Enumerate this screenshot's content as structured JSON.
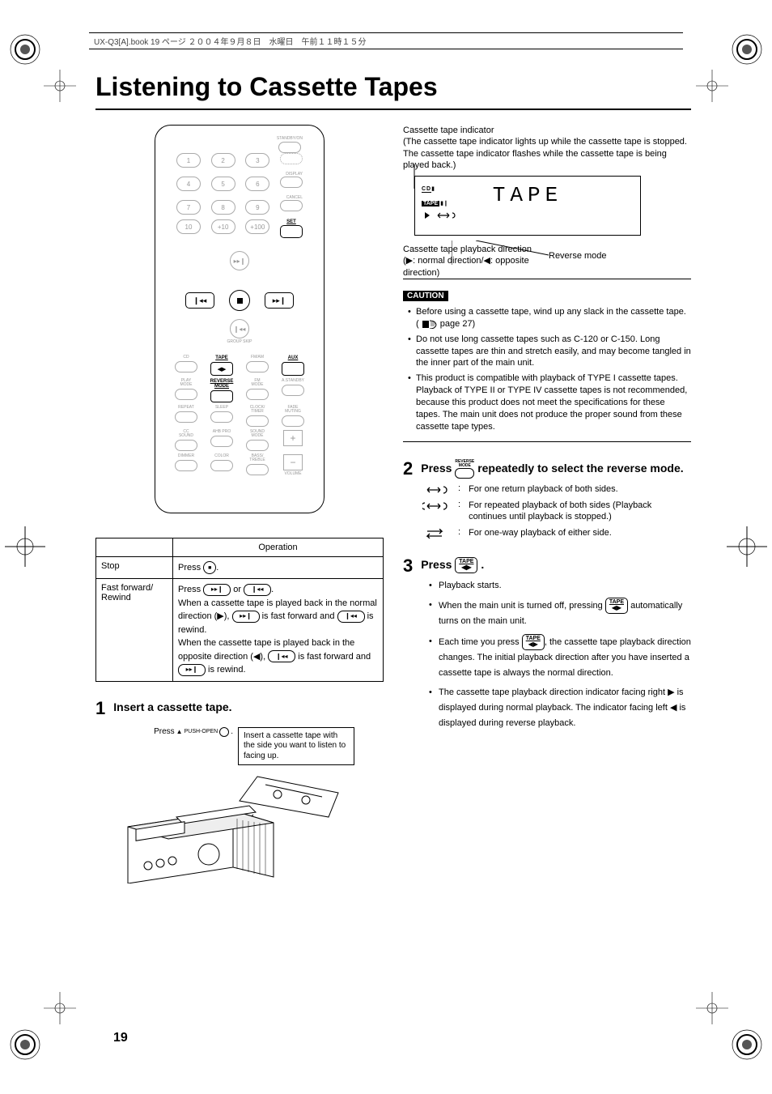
{
  "header": "UX-Q3[A].book  19 ページ  ２００４年９月８日　水曜日　午前１１時１５分",
  "title": "Listening to Cassette Tapes",
  "page_number": "19",
  "remote": {
    "numbers_r1": [
      "1",
      "2",
      "3"
    ],
    "numbers_r2": [
      "4",
      "5",
      "6"
    ],
    "numbers_r3": [
      "7",
      "8",
      "9"
    ],
    "numbers_r4": [
      "10",
      "+10",
      "+100"
    ],
    "standby": "STANDBY/ON",
    "display": "DISPLAY",
    "cancel": "CANCEL",
    "set": "SET",
    "group_skip": "GROUP SKIP",
    "funcs_r1": [
      "CD",
      "TAPE",
      "FM/AM",
      "AUX"
    ],
    "funcs_sub_r1": [
      "▶/ ❙❙",
      "◀▶",
      "",
      ""
    ],
    "funcs_r2": [
      "PLAY\nMODE",
      "REVERSE\nMODE",
      "FM\nMODE",
      "A.STANDBY"
    ],
    "funcs_r3": [
      "REPEAT",
      "SLEEP",
      "CLOCK/\nTIMER",
      "FADE\nMUTING"
    ],
    "funcs_r4": [
      "CC\nSOUND",
      "AHB PRO",
      "SOUND\nMODE",
      ""
    ],
    "funcs_r5": [
      "DIMMER",
      "COLOR",
      "BASS/\nTREBLE",
      ""
    ],
    "volume": "VOLUME"
  },
  "ops_table": {
    "header": "Operation",
    "rows": [
      {
        "label": "Stop",
        "op_prefix": "Press ",
        "op_suffix": "."
      },
      {
        "label": "Fast forward/\nRewind",
        "text1": "Press ",
        "text2": " or ",
        "text3": ".\nWhen a cassette tape is played back in the normal direction (▶), ",
        "text4": " is fast forward and ",
        "text5": " is rewind.\nWhen the cassette tape is played back in the opposite direction (◀), ",
        "text6": " is fast forward and ",
        "text7": " is rewind."
      }
    ]
  },
  "step1": {
    "num": "1",
    "title": "Insert a cassette tape.",
    "press_label": "Press ",
    "push_open": "PUSH-OPEN",
    "callout": "Insert a cassette tape with the side you want to listen to facing up."
  },
  "right": {
    "intro_label": "Cassette tape indicator",
    "intro_text": "(The cassette tape indicator lights up while the cassette tape is stopped. The cassette tape indicator flashes while the cassette tape is being played back.)",
    "display_tape": "TAPE",
    "reverse_mode_label": "Reverse mode",
    "play_dir_text": "Cassette tape playback direction (▶: normal direction/◀: opposite direction)",
    "caution": "CAUTION",
    "caution_items": [
      "Before using a cassette tape, wind up any slack in the cassette tape. ( 　　 page 27)",
      "Do not use long cassette tapes such as C-120 or C-150. Long cassette tapes are thin and stretch easily, and may become tangled in the inner part of the main unit.",
      "This product is compatible with playback of TYPE I cassette tapes. Playback of TYPE II or TYPE IV cassette tapes is not recommended, because this product does not meet the specifications for these tapes. The main unit does not produce the proper sound from these cassette tape types."
    ]
  },
  "step2": {
    "num": "2",
    "title_pre": "Press ",
    "title_post": " repeatedly to select the reverse mode.",
    "rev_label": "REVERSE\nMODE",
    "modes": [
      "For one return playback of both sides.",
      "For repeated playback of both sides (Playback continues until playback is stopped.)",
      "For one-way playback of either side."
    ]
  },
  "step3": {
    "num": "3",
    "title_pre": "Press ",
    "title_post": ".",
    "tape_btn_top": "TAPE",
    "tape_btn_bot": "◀▶",
    "bullets": [
      "Playback starts.",
      "When the main unit is turned off, pressing |TAPE| automatically turns on the main unit.",
      "Each time you press |TAPE|, the cassette tape playback direction changes. The initial playback direction after you have inserted a cassette tape is always the normal direction.",
      "The cassette tape playback direction indicator facing right ▶ is displayed during normal playback. The indicator facing left ◀ is displayed during reverse playback."
    ]
  }
}
